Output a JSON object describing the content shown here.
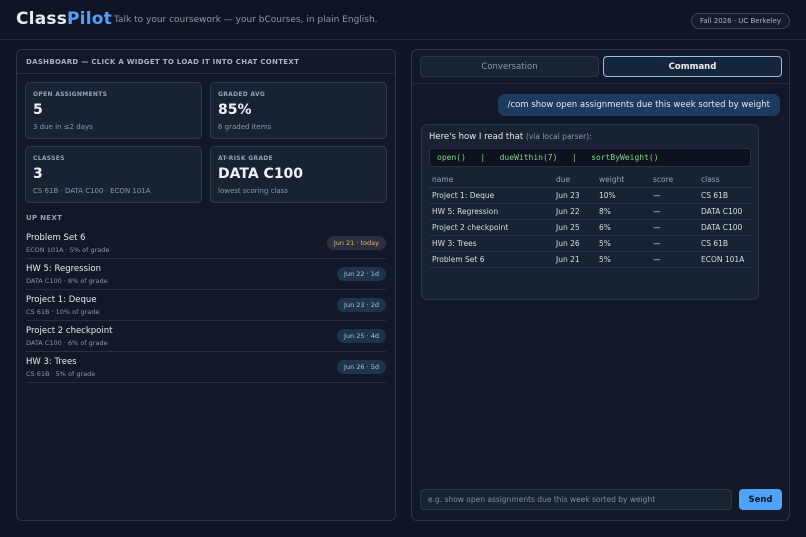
{
  "header": {
    "logo_part1": "Class",
    "logo_part2": "Pilot",
    "tagline": "Talk to your coursework — your bCourses, in plain English.",
    "term": "Fall 2026 · UC Berkeley"
  },
  "dashboard": {
    "title": "DASHBOARD — CLICK A WIDGET TO LOAD IT INTO CHAT CONTEXT",
    "widgets": [
      {
        "label": "OPEN ASSIGNMENTS",
        "value": "5",
        "sub": "3 due in ≤2 days"
      },
      {
        "label": "GRADED AVG",
        "value": "85%",
        "sub": "6 graded items"
      },
      {
        "label": "CLASSES",
        "value": "3",
        "sub": "CS 61B · DATA C100 · ECON 101A"
      },
      {
        "label": "AT-RISK GRADE",
        "value": "DATA C100",
        "sub": "lowest scoring class"
      }
    ],
    "upnext_title": "UP NEXT",
    "upnext": [
      {
        "title": "Problem Set 6",
        "meta": "ECON 101A · 5% of grade",
        "badge": "Jun 21 · today"
      },
      {
        "title": "HW 5: Regression",
        "meta": "DATA C100 · 8% of grade",
        "badge": "Jun 22 · 1d"
      },
      {
        "title": "Project 1: Deque",
        "meta": "CS 61B · 10% of grade",
        "badge": "Jun 23 · 2d"
      },
      {
        "title": "Project 2 checkpoint",
        "meta": "DATA C100 · 6% of grade",
        "badge": "Jun 25 · 4d"
      },
      {
        "title": "HW 3: Trees",
        "meta": "CS 61B · 5% of grade",
        "badge": "Jun 26 · 5d"
      }
    ]
  },
  "chat": {
    "tabs": [
      {
        "label": "Conversation",
        "active": false
      },
      {
        "label": "Command",
        "active": true
      }
    ],
    "user_message": "/com show open assignments due this week sorted by weight",
    "bot": {
      "intro": "Here's how I read that",
      "intro_note": "(via local parser):",
      "code": "open()   |   dueWithin(7)   |   sortByWeight()",
      "columns": [
        "name",
        "due",
        "weight",
        "score",
        "class"
      ],
      "rows": [
        [
          "Project 1: Deque",
          "Jun 23",
          "10%",
          "—",
          "CS 61B"
        ],
        [
          "HW 5: Regression",
          "Jun 22",
          "8%",
          "—",
          "DATA C100"
        ],
        [
          "Project 2 checkpoint",
          "Jun 25",
          "6%",
          "—",
          "DATA C100"
        ],
        [
          "HW 3: Trees",
          "Jun 26",
          "5%",
          "—",
          "CS 61B"
        ],
        [
          "Problem Set 6",
          "Jun 21",
          "5%",
          "—",
          "ECON 101A"
        ]
      ]
    },
    "input_placeholder": "e.g. show open assignments due this week sorted by weight",
    "send_label": "Send"
  }
}
